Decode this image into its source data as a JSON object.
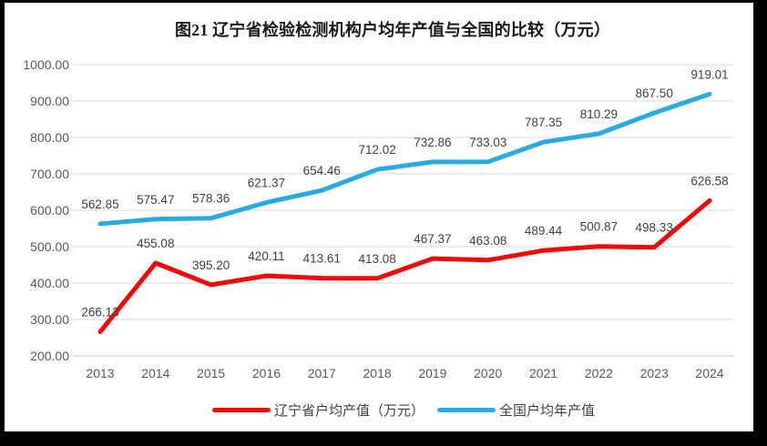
{
  "page": {
    "background": "#000000",
    "canvas_background": "#ffffff"
  },
  "chart_data": {
    "type": "line",
    "title": "图21 辽宁省检验检测机构户均年产值与全国的比较（万元）",
    "categories": [
      "2013",
      "2014",
      "2015",
      "2016",
      "2017",
      "2018",
      "2019",
      "2020",
      "2021",
      "2022",
      "2023",
      "2024"
    ],
    "series": [
      {
        "key": "liaoning",
        "name": "辽宁省户均产值（万元）",
        "color": "#f60808",
        "values": [
          266.13,
          455.08,
          395.2,
          420.11,
          413.61,
          413.08,
          467.37,
          463.08,
          489.44,
          500.87,
          498.33,
          626.58
        ]
      },
      {
        "key": "national",
        "name": "全国户均年产值",
        "color": "#29abe2",
        "values": [
          562.85,
          575.47,
          578.36,
          621.37,
          654.46,
          712.02,
          732.86,
          733.03,
          787.35,
          810.29,
          867.5,
          919.01
        ]
      }
    ],
    "xlabel": "",
    "ylabel": "",
    "ylim": [
      200,
      1000
    ],
    "ytick_step": 100,
    "ytick_labels": [
      "200.00",
      "300.00",
      "400.00",
      "500.00",
      "600.00",
      "700.00",
      "800.00",
      "900.00",
      "1000.00"
    ],
    "value_labels_shown": true,
    "value_label_decimals": 2,
    "grid": true,
    "legend_position": "bottom",
    "colors": {
      "gridline": "#d9d9d9",
      "axis_tick_text": "#595959",
      "value_label_text": "#404040",
      "title_text": "#1a1a1a"
    }
  }
}
